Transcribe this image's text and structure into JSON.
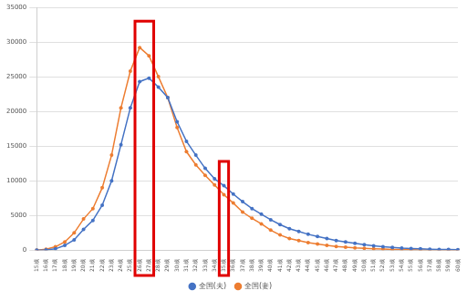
{
  "chart_data": {
    "type": "line",
    "categories": [
      "15歳",
      "16歳",
      "17歳",
      "18歳",
      "19歳",
      "20歳",
      "21歳",
      "22歳",
      "23歳",
      "24歳",
      "25歳",
      "26歳",
      "27歳",
      "28歳",
      "29歳",
      "30歳",
      "31歳",
      "32歳",
      "33歳",
      "34歳",
      "35歳",
      "36歳",
      "37歳",
      "38歳",
      "39歳",
      "40歳",
      "41歳",
      "42歳",
      "43歳",
      "44歳",
      "45歳",
      "46歳",
      "47歳",
      "48歳",
      "49歳",
      "50歳",
      "51歳",
      "52歳",
      "53歳",
      "54歳",
      "55歳",
      "56歳",
      "57歳",
      "58歳",
      "59歳",
      "60歳"
    ],
    "series": [
      {
        "name": "全国(夫)",
        "color": "#4472c4",
        "marker": "circle",
        "line_style": "solid",
        "values": [
          0,
          50,
          200,
          700,
          1500,
          3000,
          4300,
          6500,
          10000,
          15200,
          20500,
          24300,
          24800,
          23500,
          22000,
          18500,
          15700,
          13700,
          11800,
          10300,
          9300,
          8100,
          7000,
          6000,
          5200,
          4400,
          3700,
          3100,
          2700,
          2300,
          2000,
          1700,
          1400,
          1200,
          1000,
          800,
          650,
          500,
          400,
          300,
          250,
          200,
          150,
          120,
          100,
          80
        ]
      },
      {
        "name": "全国(妻)",
        "color": "#ed7d31",
        "marker": "circle",
        "line_style": "solid",
        "values": [
          0,
          150,
          500,
          1200,
          2500,
          4500,
          6000,
          9000,
          13700,
          20500,
          25800,
          29200,
          28000,
          25000,
          22000,
          17700,
          14200,
          12300,
          10800,
          9400,
          8000,
          6800,
          5500,
          4600,
          3800,
          2900,
          2200,
          1700,
          1400,
          1100,
          900,
          700,
          550,
          450,
          350,
          280,
          220,
          170,
          130,
          100,
          80,
          60,
          50,
          40,
          30,
          20
        ]
      }
    ],
    "highlights": [
      {
        "from": "26歳",
        "to": "27歳",
        "top": 33000,
        "color": "#e00000"
      },
      {
        "from": "35歳",
        "to": "35歳",
        "top": 12800,
        "color": "#e00000"
      }
    ],
    "ylim": [
      0,
      35000
    ],
    "yticks": [
      0,
      5000,
      10000,
      15000,
      20000,
      25000,
      30000,
      35000
    ],
    "grid": true,
    "legend": "bottom"
  }
}
